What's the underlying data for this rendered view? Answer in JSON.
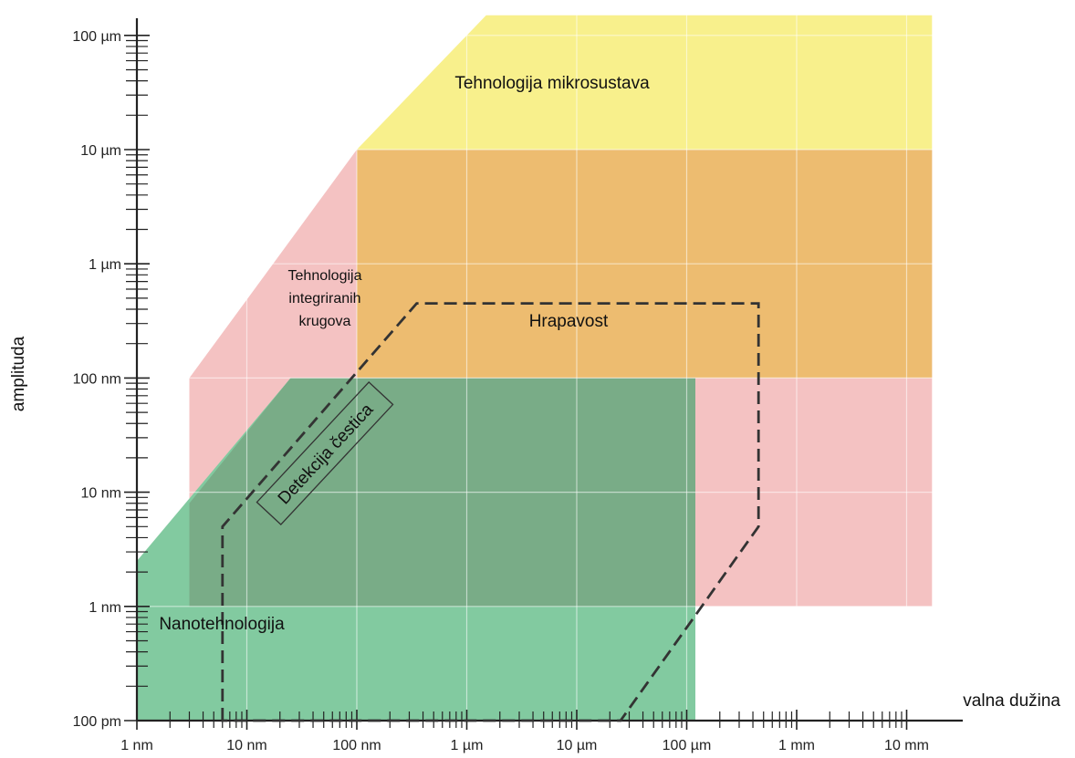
{
  "chart_data": {
    "type": "area",
    "xlabel": "valna dužina",
    "ylabel": "amplituda",
    "x_scale": "log",
    "y_scale": "log",
    "x_ticks": [
      "1 nm",
      "10 nm",
      "100 nm",
      "1 µm",
      "10 µm",
      "100 µm",
      "1 mm",
      "10 mm"
    ],
    "y_ticks": [
      "100 pm",
      "1 nm",
      "10 nm",
      "100 nm",
      "1 µm",
      "10 µm",
      "100 µm"
    ],
    "xlim": [
      "1 nm",
      "17 mm"
    ],
    "ylim": [
      "100 pm",
      "150 µm"
    ],
    "grid": true,
    "regions": [
      {
        "name": "Tehnologija integriranih krugova",
        "label_lines": [
          "Tehnologija",
          "integriranih",
          "krugova"
        ],
        "color": "#f4c2c2",
        "vertices": [
          [
            "3 nm",
            "1 nm"
          ],
          [
            "3 nm",
            "100 nm"
          ],
          [
            "100 nm",
            "10 µm"
          ],
          [
            "17 mm",
            "10 µm"
          ],
          [
            "17 mm",
            "1 nm"
          ]
        ]
      },
      {
        "name": "Tehnologija mikrosustava",
        "label_lines": [
          "Tehnologija mikrosustava"
        ],
        "color": "#f8f08c",
        "vertices": [
          [
            "100 nm",
            "10 µm"
          ],
          [
            "1.5 µm",
            "150 µm"
          ],
          [
            "17 mm",
            "150 µm"
          ],
          [
            "17 mm",
            "10 µm"
          ]
        ]
      },
      {
        "name": "Hrapavost",
        "label_lines": [
          "Hrapavost"
        ],
        "color": "#edbc70",
        "vertices": [
          [
            "100 nm",
            "100 nm"
          ],
          [
            "100 nm",
            "10 µm"
          ],
          [
            "17 mm",
            "10 µm"
          ],
          [
            "17 mm",
            "100 nm"
          ]
        ]
      },
      {
        "name": "Nanotehnologija",
        "label_lines": [
          "Nanotehnologija"
        ],
        "color": "#82caa0",
        "vertices": [
          [
            "1 nm",
            "100 pm"
          ],
          [
            "1 nm",
            "2.5 nm"
          ],
          [
            "25 nm",
            "100 nm"
          ],
          [
            "120 µm",
            "100 nm"
          ],
          [
            "120 µm",
            "100 pm"
          ]
        ]
      },
      {
        "name": "Overlap",
        "label_lines": [],
        "color": "#79ac87",
        "vertices": [
          [
            "3 nm",
            "1 nm"
          ],
          [
            "3 nm",
            "8 nm"
          ],
          [
            "25 nm",
            "100 nm"
          ],
          [
            "120 µm",
            "100 nm"
          ],
          [
            "120 µm",
            "1 nm"
          ]
        ]
      }
    ],
    "dashed_region": {
      "name": "Detekcija čestica",
      "label_lines": [
        "Detekcija čestica"
      ],
      "color": "#333333",
      "vertices": [
        [
          "6 nm",
          "100 pm"
        ],
        [
          "6 nm",
          "5 nm"
        ],
        [
          "350 nm",
          "450 nm"
        ],
        [
          "450 µm",
          "450 nm"
        ],
        [
          "450 µm",
          "5 nm"
        ],
        [
          "25 µm",
          "100 pm"
        ]
      ]
    }
  }
}
